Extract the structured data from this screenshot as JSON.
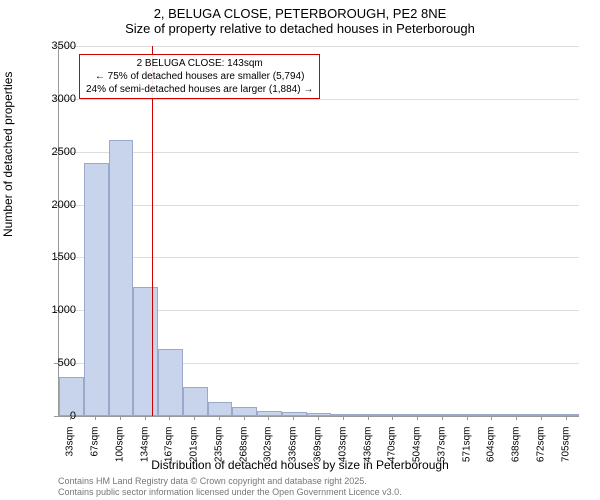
{
  "chart": {
    "type": "histogram",
    "title_line1": "2, BELUGA CLOSE, PETERBOROUGH, PE2 8NE",
    "title_line2": "Size of property relative to detached houses in Peterborough",
    "title_fontsize": 13,
    "y_axis_label": "Number of detached properties",
    "x_axis_label": "Distribution of detached houses by size in Peterborough",
    "axis_label_fontsize": 12,
    "background_color": "#ffffff",
    "grid_color": "#dddddd",
    "axis_color": "#999999",
    "bar_fill": "#c8d4ec",
    "bar_stroke": "#9aa9c9",
    "reference_line_color": "#d00000",
    "reference_value": 143,
    "ylim": [
      0,
      3500
    ],
    "ytick_step": 500,
    "yticks": [
      0,
      500,
      1000,
      1500,
      2000,
      2500,
      3000,
      3500
    ],
    "xticks": [
      "33sqm",
      "67sqm",
      "100sqm",
      "134sqm",
      "167sqm",
      "201sqm",
      "235sqm",
      "268sqm",
      "302sqm",
      "336sqm",
      "369sqm",
      "403sqm",
      "436sqm",
      "470sqm",
      "504sqm",
      "537sqm",
      "571sqm",
      "604sqm",
      "638sqm",
      "672sqm",
      "705sqm"
    ],
    "bins": [
      {
        "label": "33sqm",
        "value": 370
      },
      {
        "label": "67sqm",
        "value": 2390
      },
      {
        "label": "100sqm",
        "value": 2610
      },
      {
        "label": "134sqm",
        "value": 1220
      },
      {
        "label": "167sqm",
        "value": 630
      },
      {
        "label": "201sqm",
        "value": 270
      },
      {
        "label": "235sqm",
        "value": 130
      },
      {
        "label": "268sqm",
        "value": 90
      },
      {
        "label": "302sqm",
        "value": 50
      },
      {
        "label": "336sqm",
        "value": 40
      },
      {
        "label": "369sqm",
        "value": 30
      },
      {
        "label": "403sqm",
        "value": 20
      },
      {
        "label": "436sqm",
        "value": 10
      },
      {
        "label": "470sqm",
        "value": 10
      },
      {
        "label": "504sqm",
        "value": 5
      },
      {
        "label": "537sqm",
        "value": 5
      },
      {
        "label": "571sqm",
        "value": 5
      },
      {
        "label": "604sqm",
        "value": 5
      },
      {
        "label": "638sqm",
        "value": 5
      },
      {
        "label": "672sqm",
        "value": 5
      },
      {
        "label": "705sqm",
        "value": 5
      }
    ],
    "annotation": {
      "line1": "2 BELUGA CLOSE: 143sqm",
      "line2": "← 75% of detached houses are smaller (5,794)",
      "line3": "24% of semi-detached houses are larger (1,884) →",
      "border_color": "#d00000",
      "fontsize": 10
    },
    "footer_line1": "Contains HM Land Registry data © Crown copyright and database right 2025.",
    "footer_line2": "Contains public sector information licensed under the Open Government Licence v3.0.",
    "footer_color": "#777777",
    "footer_fontsize": 9
  }
}
